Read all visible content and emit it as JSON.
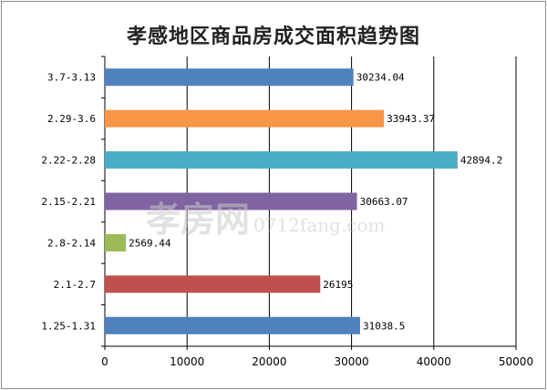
{
  "chart_data": {
    "type": "bar",
    "orientation": "horizontal",
    "title": "孝感地区商品房成交面积趋势图",
    "categories": [
      "3.7-3.13",
      "2.29-3.6",
      "2.22-2.28",
      "2.15-2.21",
      "2.8-2.14",
      "2.1-2.7",
      "1.25-1.31"
    ],
    "values": [
      30234.04,
      33943.37,
      42894.2,
      30663.07,
      2569.44,
      26195,
      31038.5
    ],
    "labels": [
      "30234.04",
      "33943.37",
      "42894.2",
      "30663.07",
      "2569.44",
      "26195",
      "31038.5"
    ],
    "colors": [
      "#4f81bd",
      "#f79646",
      "#4bacc6",
      "#8064a2",
      "#9bbb59",
      "#c0504d",
      "#4f81bd"
    ],
    "xlim": [
      0,
      50000
    ],
    "xticks": [
      0,
      10000,
      20000,
      30000,
      40000,
      50000
    ],
    "grid": true
  },
  "watermark": {
    "main": "孝房网",
    "url": "0712fang.com"
  }
}
